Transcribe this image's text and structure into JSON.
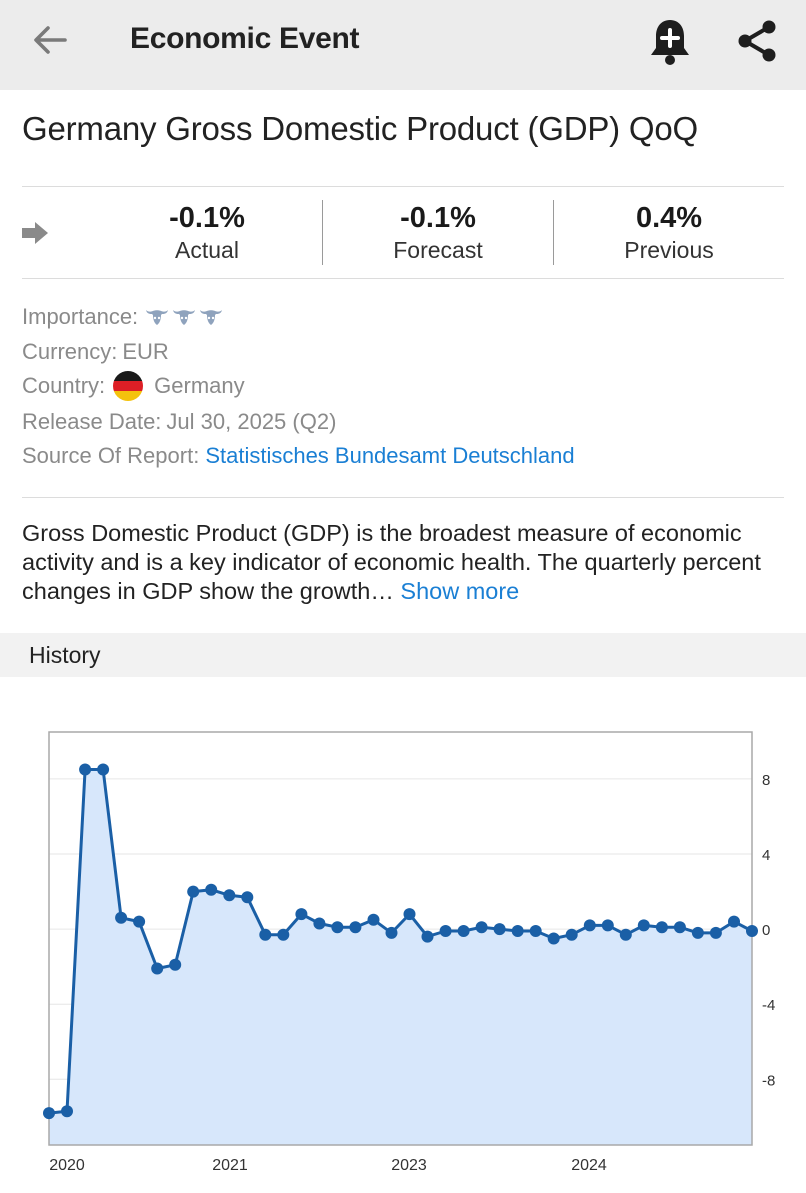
{
  "header": {
    "title": "Economic Event",
    "back_icon": "arrow-left-icon",
    "bell_icon": "bell-plus-icon",
    "share_icon": "share-icon"
  },
  "event": {
    "title": "Germany Gross Domestic Product (GDP) QoQ"
  },
  "stats": {
    "actual": {
      "value": "-0.1%",
      "label": "Actual"
    },
    "forecast": {
      "value": "-0.1%",
      "label": "Forecast"
    },
    "previous": {
      "value": "0.4%",
      "label": "Previous"
    }
  },
  "meta": {
    "importance_label": "Importance:",
    "importance_level": 3,
    "currency_label": "Currency:",
    "currency_value": "EUR",
    "country_label": "Country:",
    "country_value": "Germany",
    "release_label": "Release Date:",
    "release_value": "Jul 30, 2025 (Q2)",
    "source_label": "Source Of Report:",
    "source_value": "Statistisches Bundesamt Deutschland"
  },
  "description": {
    "text": "Gross Domestic Product (GDP) is the broadest measure of economic activity and is a key indicator of economic health. The quarterly percent changes in GDP show the growth…",
    "show_more": "Show more"
  },
  "history": {
    "title": "History"
  },
  "colors": {
    "accent_blue": "#1a7fd4",
    "line": "#1a5fa6",
    "area": "#d7e7fb"
  },
  "chart_data": {
    "type": "area",
    "x_tick_labels": [
      "2020",
      "2021",
      "2023",
      "2024"
    ],
    "y_ticks": [
      8,
      4,
      0,
      -4,
      -8
    ],
    "ylim": [
      -11.5,
      10.5
    ],
    "grid": true,
    "y_axis_side": "right",
    "values": [
      -9.8,
      -9.7,
      8.5,
      8.5,
      0.6,
      0.4,
      -2.1,
      -1.9,
      2.0,
      2.1,
      1.8,
      1.7,
      -0.3,
      -0.3,
      0.8,
      0.3,
      0.1,
      0.1,
      0.5,
      -0.2,
      0.8,
      -0.4,
      -0.1,
      -0.1,
      0.1,
      0.0,
      -0.1,
      -0.1,
      -0.5,
      -0.3,
      0.2,
      0.2,
      -0.3,
      0.2,
      0.1,
      0.1,
      -0.2,
      -0.2,
      0.4,
      -0.1
    ]
  }
}
